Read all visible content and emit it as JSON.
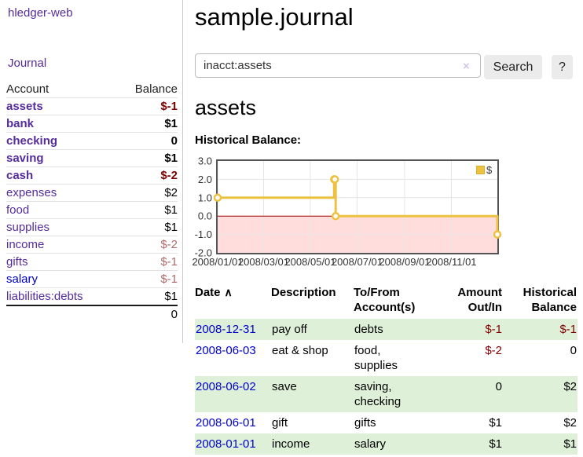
{
  "theme": {
    "purple": "#552c9c",
    "blue": "#0000cc",
    "negative_red": "#800000",
    "muted_negative_red": "#b06a6a",
    "row_stripe_green": "#dff0d8",
    "series_gold": "#edc240"
  },
  "brand": {
    "title": "hledger-web"
  },
  "nav": {
    "journal": "Journal"
  },
  "sidebar": {
    "headers": {
      "account": "Account",
      "balance": "Balance"
    },
    "accounts": [
      {
        "name": "assets",
        "balance": "$-1"
      },
      {
        "name": "bank",
        "balance": "$1"
      },
      {
        "name": "checking",
        "balance": "0"
      },
      {
        "name": "saving",
        "balance": "$1"
      },
      {
        "name": "cash",
        "balance": "$-2"
      },
      {
        "name": "expenses",
        "balance": "$2"
      },
      {
        "name": "food",
        "balance": "$1"
      },
      {
        "name": "supplies",
        "balance": "$1"
      },
      {
        "name": "income",
        "balance": "$-2"
      },
      {
        "name": "gifts",
        "balance": "$-1"
      },
      {
        "name": "salary",
        "balance": "$-1"
      },
      {
        "name": "liabilities:debts",
        "balance": "$1"
      }
    ],
    "total": "0"
  },
  "main": {
    "title": "sample.journal",
    "search": {
      "value": "inacct:assets",
      "clear": "×",
      "button": "Search",
      "help": "?"
    },
    "heading": "assets",
    "chart_title": "Historical Balance:"
  },
  "chart_data": {
    "type": "line",
    "title": "Historical Balance",
    "x_range": [
      "2008-01-01",
      "2008-12-31"
    ],
    "ylim": [
      -2,
      3
    ],
    "y_ticks": [
      3,
      2,
      1,
      0,
      -1,
      -2
    ],
    "x_tick_dates": [
      "2008-01-01",
      "2008-03-01",
      "2008-05-01",
      "2008-07-01",
      "2008-09-01",
      "2008-11-01"
    ],
    "x_tick_labels": [
      "2008/01/01",
      "2008/03/01",
      "2008/05/01",
      "2008/07/01",
      "2008/09/01",
      "2008/11/01"
    ],
    "series": [
      {
        "name": "$",
        "color": "#edc240",
        "steps": true,
        "points": [
          [
            "2008-01-01",
            1
          ],
          [
            "2008-06-01",
            2
          ],
          [
            "2008-06-02",
            2
          ],
          [
            "2008-06-03",
            0
          ],
          [
            "2008-12-31",
            -1
          ]
        ]
      }
    ],
    "grid": true,
    "legend_position": "top-right",
    "negative_region_color": "#ffdddd",
    "zero_line_color": "#990000"
  },
  "register": {
    "headers": {
      "date": "Date",
      "sort": "∧",
      "description": "Description",
      "tofrom": [
        "To/From",
        "Account(s)"
      ],
      "amount": [
        "Amount",
        "Out/In"
      ],
      "historical": [
        "Historical",
        "Balance"
      ]
    },
    "rows": [
      {
        "date": "2008-12-31",
        "description": "pay off",
        "accounts": "debts",
        "amount": "$-1",
        "balance": "$-1"
      },
      {
        "date": "2008-06-03",
        "description": "eat & shop",
        "accounts": "food, supplies",
        "amount": "$-2",
        "balance": "0"
      },
      {
        "date": "2008-06-02",
        "description": "save",
        "accounts": "saving, checking",
        "amount": "0",
        "balance": "$2"
      },
      {
        "date": "2008-06-01",
        "description": "gift",
        "accounts": "gifts",
        "amount": "$1",
        "balance": "$2"
      },
      {
        "date": "2008-01-01",
        "description": "income",
        "accounts": "salary",
        "amount": "$1",
        "balance": "$1"
      }
    ]
  }
}
